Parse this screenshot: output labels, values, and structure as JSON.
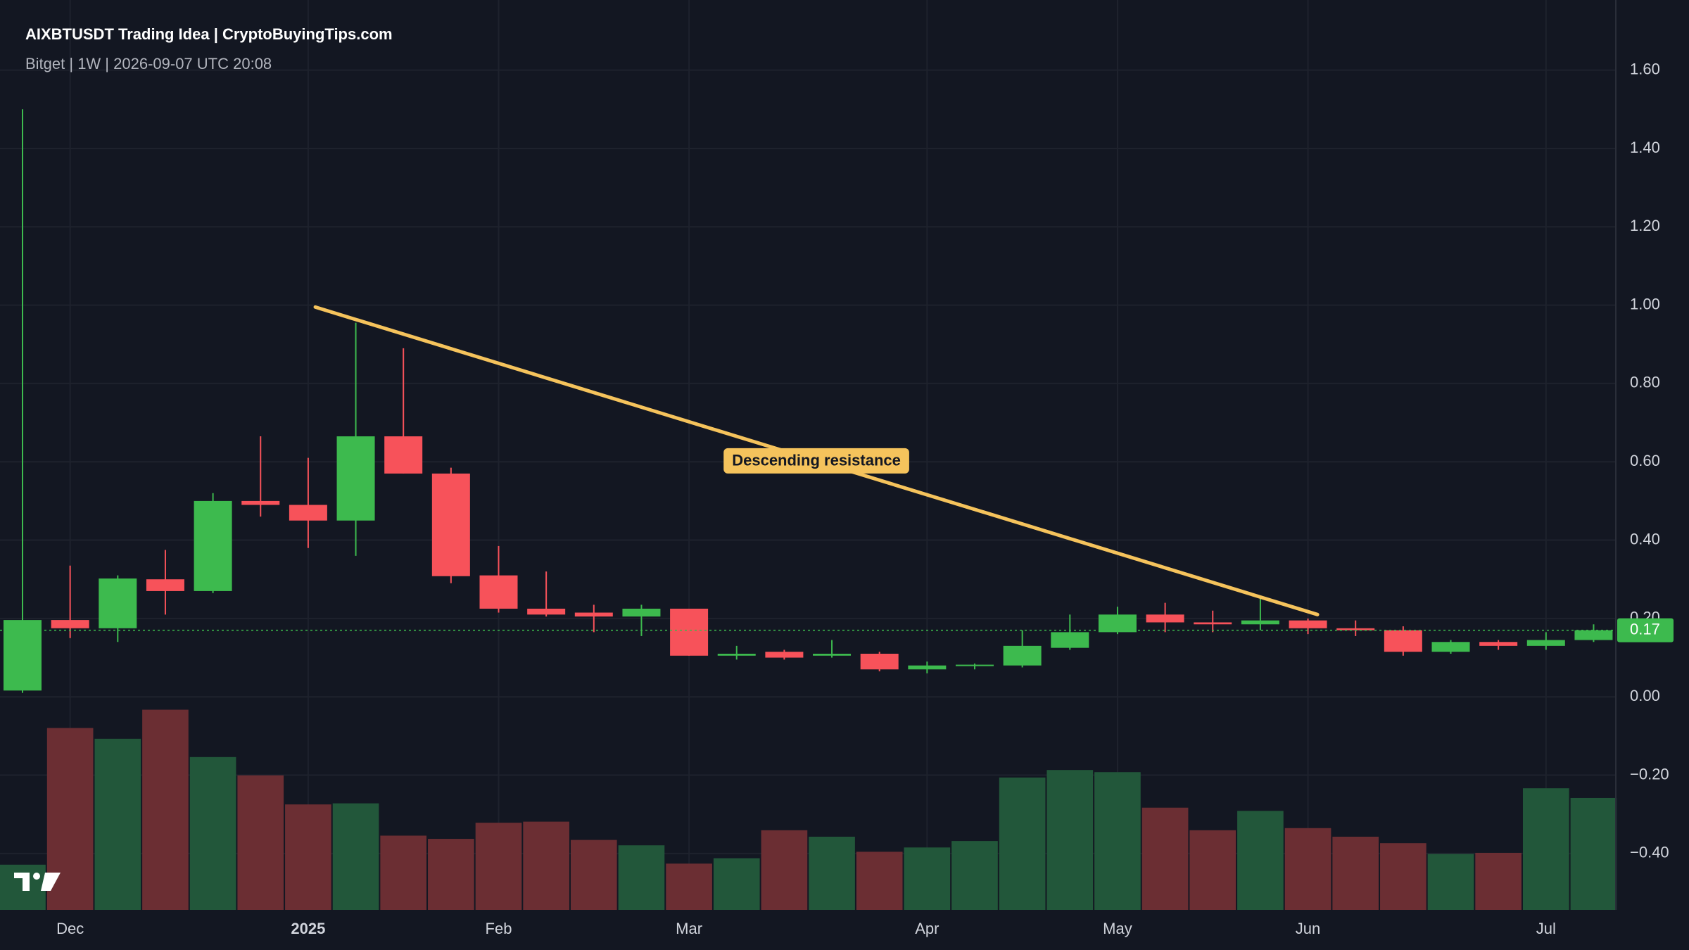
{
  "chart_data": {
    "type": "candlestick",
    "title": "AIXBTUSDT Trading Idea | CryptoBuyingTips.com",
    "subtitle": "Bitget | 1W | 2026-09-07 UTC 20:08",
    "categories": [
      null,
      "Dec",
      null,
      null,
      null,
      null,
      "2025",
      null,
      null,
      null,
      "Feb",
      null,
      null,
      null,
      "Mar",
      null,
      null,
      null,
      null,
      "Apr",
      null,
      null,
      null,
      "May",
      null,
      null,
      null,
      "Jun",
      null,
      null,
      null,
      null,
      "Jul",
      null
    ],
    "candles": {
      "open": [
        0.016,
        0.196,
        0.175,
        0.3,
        0.27,
        0.5,
        0.49,
        0.45,
        0.665,
        0.57,
        0.31,
        0.225,
        0.215,
        0.205,
        0.225,
        0.105,
        0.115,
        0.105,
        0.11,
        0.07,
        0.08,
        0.08,
        0.125,
        0.165,
        0.21,
        0.19,
        0.185,
        0.195,
        0.175,
        0.17,
        0.115,
        0.14,
        0.13,
        0.145
      ],
      "high": [
        1.5,
        0.335,
        0.31,
        0.375,
        0.52,
        0.665,
        0.61,
        0.955,
        0.89,
        0.585,
        0.385,
        0.32,
        0.235,
        0.235,
        0.225,
        0.13,
        0.12,
        0.145,
        0.115,
        0.09,
        0.085,
        0.17,
        0.21,
        0.23,
        0.24,
        0.22,
        0.25,
        0.2,
        0.195,
        0.18,
        0.145,
        0.145,
        0.165,
        0.185
      ],
      "low": [
        0.01,
        0.15,
        0.14,
        0.21,
        0.265,
        0.46,
        0.38,
        0.36,
        0.57,
        0.29,
        0.215,
        0.205,
        0.165,
        0.155,
        0.105,
        0.095,
        0.095,
        0.1,
        0.065,
        0.06,
        0.07,
        0.075,
        0.12,
        0.16,
        0.165,
        0.165,
        0.17,
        0.16,
        0.155,
        0.105,
        0.11,
        0.12,
        0.12,
        0.14
      ],
      "close": [
        0.196,
        0.175,
        0.302,
        0.27,
        0.5,
        0.49,
        0.45,
        0.665,
        0.57,
        0.308,
        0.225,
        0.21,
        0.205,
        0.225,
        0.105,
        0.11,
        0.1,
        0.11,
        0.07,
        0.08,
        0.082,
        0.13,
        0.165,
        0.21,
        0.19,
        0.185,
        0.195,
        0.175,
        0.17,
        0.115,
        0.14,
        0.13,
        0.145,
        0.17
      ]
    },
    "volume": [
      42,
      169,
      159,
      186,
      142,
      125,
      98,
      99,
      69,
      66,
      81,
      82,
      65,
      60,
      43,
      48,
      74,
      68,
      54,
      58,
      64,
      123,
      130,
      128,
      95,
      74,
      92,
      76,
      68,
      62,
      52,
      53,
      113,
      104
    ],
    "up_color": "#3dba4e",
    "down_color": "#f7525a",
    "volume_up_color": "#22573a",
    "volume_down_color": "#6b2e33",
    "ylim": [
      -0.544,
      1.779
    ],
    "yticks": [
      {
        "value": -0.4,
        "label": "−0.40"
      },
      {
        "value": -0.2,
        "label": "−0.20"
      },
      {
        "value": 0,
        "label": "0.00"
      },
      {
        "value": 0.2,
        "label": "0.20"
      },
      {
        "value": 0.4,
        "label": "0.40"
      },
      {
        "value": 0.6,
        "label": "0.60"
      },
      {
        "value": 0.8,
        "label": "0.80"
      },
      {
        "value": 1.0,
        "label": "1.00"
      },
      {
        "value": 1.2,
        "label": "1.20"
      },
      {
        "value": 1.4,
        "label": "1.40"
      },
      {
        "value": 1.6,
        "label": "1.60"
      }
    ],
    "grid": true,
    "last_price": 0.17,
    "trendline": {
      "label": "Descending resistance",
      "start": [
        6.15,
        0.995
      ],
      "end": [
        27.2,
        0.21
      ],
      "color": "#f5c35c"
    }
  }
}
